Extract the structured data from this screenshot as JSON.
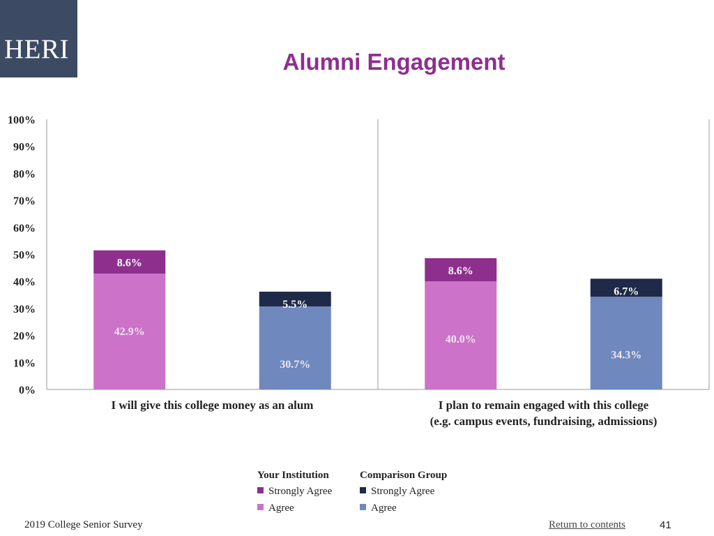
{
  "logo": {
    "text": "HERI"
  },
  "title": "Alumni Engagement",
  "chart_data": {
    "type": "bar",
    "stacked": true,
    "y_ticks": [
      "0%",
      "10%",
      "20%",
      "30%",
      "40%",
      "50%",
      "60%",
      "70%",
      "80%",
      "90%",
      "100%"
    ],
    "ylim": [
      0,
      100
    ],
    "categories": [
      [
        "I will give this college money as an alum"
      ],
      [
        "I plan to remain engaged with this college",
        "(e.g. campus events, fundraising, admissions)"
      ]
    ],
    "groups": [
      {
        "name": "Your Institution",
        "series": [
          {
            "name": "Agree",
            "color": "#cc72c9",
            "values": [
              42.9,
              40.0
            ],
            "labels": [
              "42.9%",
              "40.0%"
            ]
          },
          {
            "name": "Strongly Agree",
            "color": "#8e2f8e",
            "values": [
              8.6,
              8.6
            ],
            "labels": [
              "8.6%",
              "8.6%"
            ]
          }
        ]
      },
      {
        "name": "Comparison Group",
        "series": [
          {
            "name": "Agree",
            "color": "#6f88bd",
            "values": [
              30.7,
              34.3
            ],
            "labels": [
              "30.7%",
              "34.3%"
            ]
          },
          {
            "name": "Strongly Agree",
            "color": "#1f2a48",
            "values": [
              5.5,
              6.7
            ],
            "labels": [
              "5.5%",
              "6.7%"
            ]
          }
        ]
      }
    ],
    "legend_placement": "bottom",
    "grid": false
  },
  "legend": {
    "institution": {
      "title": "Your Institution",
      "items": [
        {
          "label": "Strongly Agree",
          "color": "#8e2f8e"
        },
        {
          "label": "Agree",
          "color": "#cc72c9"
        }
      ]
    },
    "comparison": {
      "title": "Comparison Group",
      "items": [
        {
          "label": "Strongly Agree",
          "color": "#1f2a48"
        },
        {
          "label": "Agree",
          "color": "#6f88bd"
        }
      ]
    }
  },
  "footer": {
    "survey": "2019 College Senior Survey",
    "link": "Return to contents",
    "page": "41"
  }
}
